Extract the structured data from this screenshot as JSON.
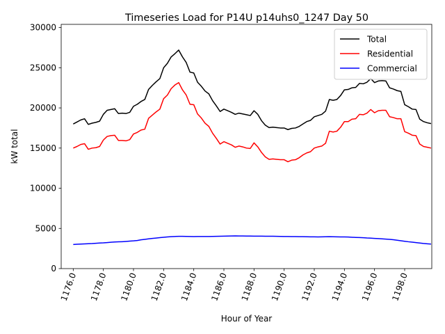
{
  "chart_data": {
    "type": "line",
    "title": "Timeseries Load for P14U p14uhs0_1247  Day 50",
    "xlabel": "Hour of Year",
    "ylabel": "kW total",
    "xlim": [
      1175.2,
      1199.8
    ],
    "ylim": [
      0,
      30400
    ],
    "xticks": [
      1176,
      1178,
      1180,
      1182,
      1184,
      1186,
      1188,
      1190,
      1192,
      1194,
      1196,
      1198
    ],
    "xtick_labels": [
      "1176.0",
      "1178.0",
      "1180.0",
      "1182.0",
      "1184.0",
      "1186.0",
      "1188.0",
      "1190.0",
      "1192.0",
      "1194.0",
      "1196.0",
      "1198.0"
    ],
    "yticks": [
      0,
      5000,
      10000,
      15000,
      20000,
      25000,
      30000
    ],
    "ytick_labels": [
      "0",
      "5000",
      "10000",
      "15000",
      "20000",
      "25000",
      "30000"
    ],
    "grid": false,
    "legend_position": "top-right",
    "x": [
      1176.0,
      1176.25,
      1176.5,
      1176.75,
      1177.0,
      1177.25,
      1177.5,
      1177.75,
      1178.0,
      1178.25,
      1178.5,
      1178.75,
      1179.0,
      1179.25,
      1179.5,
      1179.75,
      1180.0,
      1180.25,
      1180.5,
      1180.75,
      1181.0,
      1181.25,
      1181.5,
      1181.75,
      1182.0,
      1182.25,
      1182.5,
      1182.75,
      1183.0,
      1183.25,
      1183.5,
      1183.75,
      1184.0,
      1184.25,
      1184.5,
      1184.75,
      1185.0,
      1185.25,
      1185.5,
      1185.75,
      1186.0,
      1186.25,
      1186.5,
      1186.75,
      1187.0,
      1187.25,
      1187.5,
      1187.75,
      1188.0,
      1188.25,
      1188.5,
      1188.75,
      1189.0,
      1189.25,
      1189.5,
      1189.75,
      1190.0,
      1190.25,
      1190.5,
      1190.75,
      1191.0,
      1191.25,
      1191.5,
      1191.75,
      1192.0,
      1192.25,
      1192.5,
      1192.75,
      1193.0,
      1193.25,
      1193.5,
      1193.75,
      1194.0,
      1194.25,
      1194.5,
      1194.75,
      1195.0,
      1195.25,
      1195.5,
      1195.75,
      1196.0,
      1196.25,
      1196.5,
      1196.75,
      1197.0,
      1197.25,
      1197.5,
      1197.75,
      1198.0,
      1198.25,
      1198.5,
      1198.75,
      1199.0,
      1199.25,
      1199.5,
      1199.75
    ],
    "series": [
      {
        "name": "Total",
        "color": "#000000",
        "values": [
          18000,
          18250,
          18500,
          18650,
          17950,
          18100,
          18200,
          18350,
          19200,
          19700,
          19800,
          19900,
          19300,
          19350,
          19300,
          19450,
          20200,
          20450,
          20800,
          21050,
          22300,
          22800,
          23250,
          23650,
          25000,
          25550,
          26350,
          26750,
          27200,
          26350,
          25650,
          24450,
          24350,
          23200,
          22700,
          22100,
          21750,
          20900,
          20250,
          19550,
          19850,
          19650,
          19450,
          19200,
          19350,
          19250,
          19150,
          19050,
          19650,
          19200,
          18400,
          17850,
          17550,
          17600,
          17550,
          17500,
          17500,
          17300,
          17450,
          17500,
          17700,
          18000,
          18300,
          18450,
          18900,
          19050,
          19200,
          19600,
          21050,
          20950,
          21050,
          21550,
          22250,
          22300,
          22500,
          22550,
          23050,
          23000,
          23200,
          23650,
          23150,
          23350,
          23400,
          23350,
          22500,
          22350,
          22150,
          22050,
          20400,
          20150,
          19850,
          19800,
          18600,
          18300,
          18150,
          18050
        ]
      },
      {
        "name": "Residential",
        "color": "#ff0000",
        "values": [
          15000,
          15200,
          15450,
          15550,
          14850,
          15000,
          15050,
          15200,
          16000,
          16450,
          16550,
          16600,
          15950,
          15950,
          15900,
          16050,
          16750,
          16950,
          17250,
          17350,
          18700,
          19100,
          19500,
          19850,
          21150,
          21600,
          22400,
          22850,
          23150,
          22250,
          21600,
          20450,
          20400,
          19250,
          18750,
          18100,
          17700,
          16850,
          16200,
          15500,
          15800,
          15600,
          15400,
          15100,
          15250,
          15150,
          15000,
          14950,
          15650,
          15150,
          14450,
          13900,
          13600,
          13650,
          13600,
          13550,
          13550,
          13300,
          13500,
          13550,
          13800,
          14150,
          14400,
          14550,
          15000,
          15150,
          15250,
          15600,
          17100,
          17000,
          17100,
          17600,
          18300,
          18300,
          18600,
          18650,
          19200,
          19150,
          19350,
          19800,
          19400,
          19650,
          19700,
          19700,
          18900,
          18800,
          18650,
          18650,
          17050,
          16850,
          16600,
          16550,
          15500,
          15200,
          15100,
          15000
        ]
      },
      {
        "name": "Commercial",
        "color": "#0000ff",
        "values": [
          3000,
          3030,
          3050,
          3080,
          3100,
          3120,
          3150,
          3180,
          3200,
          3240,
          3280,
          3310,
          3330,
          3350,
          3380,
          3420,
          3450,
          3500,
          3580,
          3640,
          3700,
          3760,
          3800,
          3850,
          3900,
          3940,
          3970,
          4000,
          4020,
          4020,
          4010,
          4000,
          3980,
          3990,
          4000,
          3995,
          4000,
          4010,
          4020,
          4030,
          4040,
          4050,
          4060,
          4070,
          4060,
          4060,
          4050,
          4050,
          4040,
          4040,
          4035,
          4030,
          4030,
          4025,
          4020,
          4010,
          4000,
          3990,
          3985,
          3980,
          3970,
          3970,
          3960,
          3950,
          3950,
          3945,
          3950,
          3960,
          3970,
          3960,
          3955,
          3945,
          3940,
          3930,
          3900,
          3880,
          3860,
          3840,
          3810,
          3790,
          3760,
          3730,
          3700,
          3670,
          3640,
          3590,
          3530,
          3460,
          3400,
          3340,
          3290,
          3240,
          3180,
          3130,
          3090,
          3050
        ]
      }
    ]
  }
}
